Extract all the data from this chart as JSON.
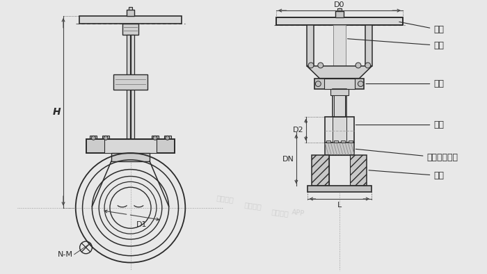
{
  "bg_color": "#e8e8e8",
  "line_color": "#2a2a2a",
  "dim_line_color": "#444444",
  "figsize": [
    7.0,
    3.94
  ],
  "dpi": 100,
  "labels": {
    "handwheel": "手轮",
    "valve_stem": "阀杆",
    "bracket": "支架",
    "gate": "闸板",
    "seal": "密封圈硬密封",
    "body": "阀体",
    "D0": "D0",
    "D1": "D1",
    "D2": "D2",
    "DN": "DN",
    "H": "H",
    "L": "L",
    "NM": "N-M"
  }
}
